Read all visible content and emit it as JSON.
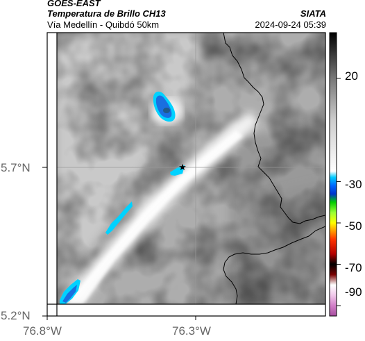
{
  "header": {
    "satellite": "GOES-EAST",
    "product": "Temperatura de Brillo CH13",
    "region": "Vía Medellín - Quibdó 50km",
    "agency": "SIATA",
    "datetime": "2024-09-24 05:39"
  },
  "axes": {
    "lat_ticks": [
      "5.7°N",
      "5.2°N"
    ],
    "lon_ticks": [
      "76.8°W",
      "76.3°W"
    ]
  },
  "colorbar": {
    "ticks": [
      "20",
      "-30",
      "-50",
      "-70",
      "-90"
    ],
    "tick_values": [
      20,
      -30,
      -50,
      -70,
      -90
    ],
    "range": [
      -95,
      42
    ],
    "stops": [
      {
        "t": -95,
        "c": "#a64d9e"
      },
      {
        "t": -90,
        "c": "#d27fc8"
      },
      {
        "t": -85,
        "c": "#f0c8ea"
      },
      {
        "t": -80,
        "c": "#ffffff"
      },
      {
        "t": -75,
        "c": "#7a0000"
      },
      {
        "t": -70,
        "c": "#000000"
      },
      {
        "t": -65,
        "c": "#b30000"
      },
      {
        "t": -58,
        "c": "#ff3300"
      },
      {
        "t": -54,
        "c": "#ff9900"
      },
      {
        "t": -50,
        "c": "#ffff00"
      },
      {
        "t": -45,
        "c": "#99ff33"
      },
      {
        "t": -40,
        "c": "#00cc00"
      },
      {
        "t": -36,
        "c": "#0033cc"
      },
      {
        "t": -32,
        "c": "#0066ff"
      },
      {
        "t": -28,
        "c": "#00ccff"
      },
      {
        "t": -25,
        "c": "#ffffff"
      },
      {
        "t": 0,
        "c": "#cccccc"
      },
      {
        "t": 20,
        "c": "#777777"
      },
      {
        "t": 42,
        "c": "#000000"
      }
    ]
  },
  "colors": {
    "border_line": "#000000",
    "grid_line": "#999999",
    "marker": "#000000"
  }
}
